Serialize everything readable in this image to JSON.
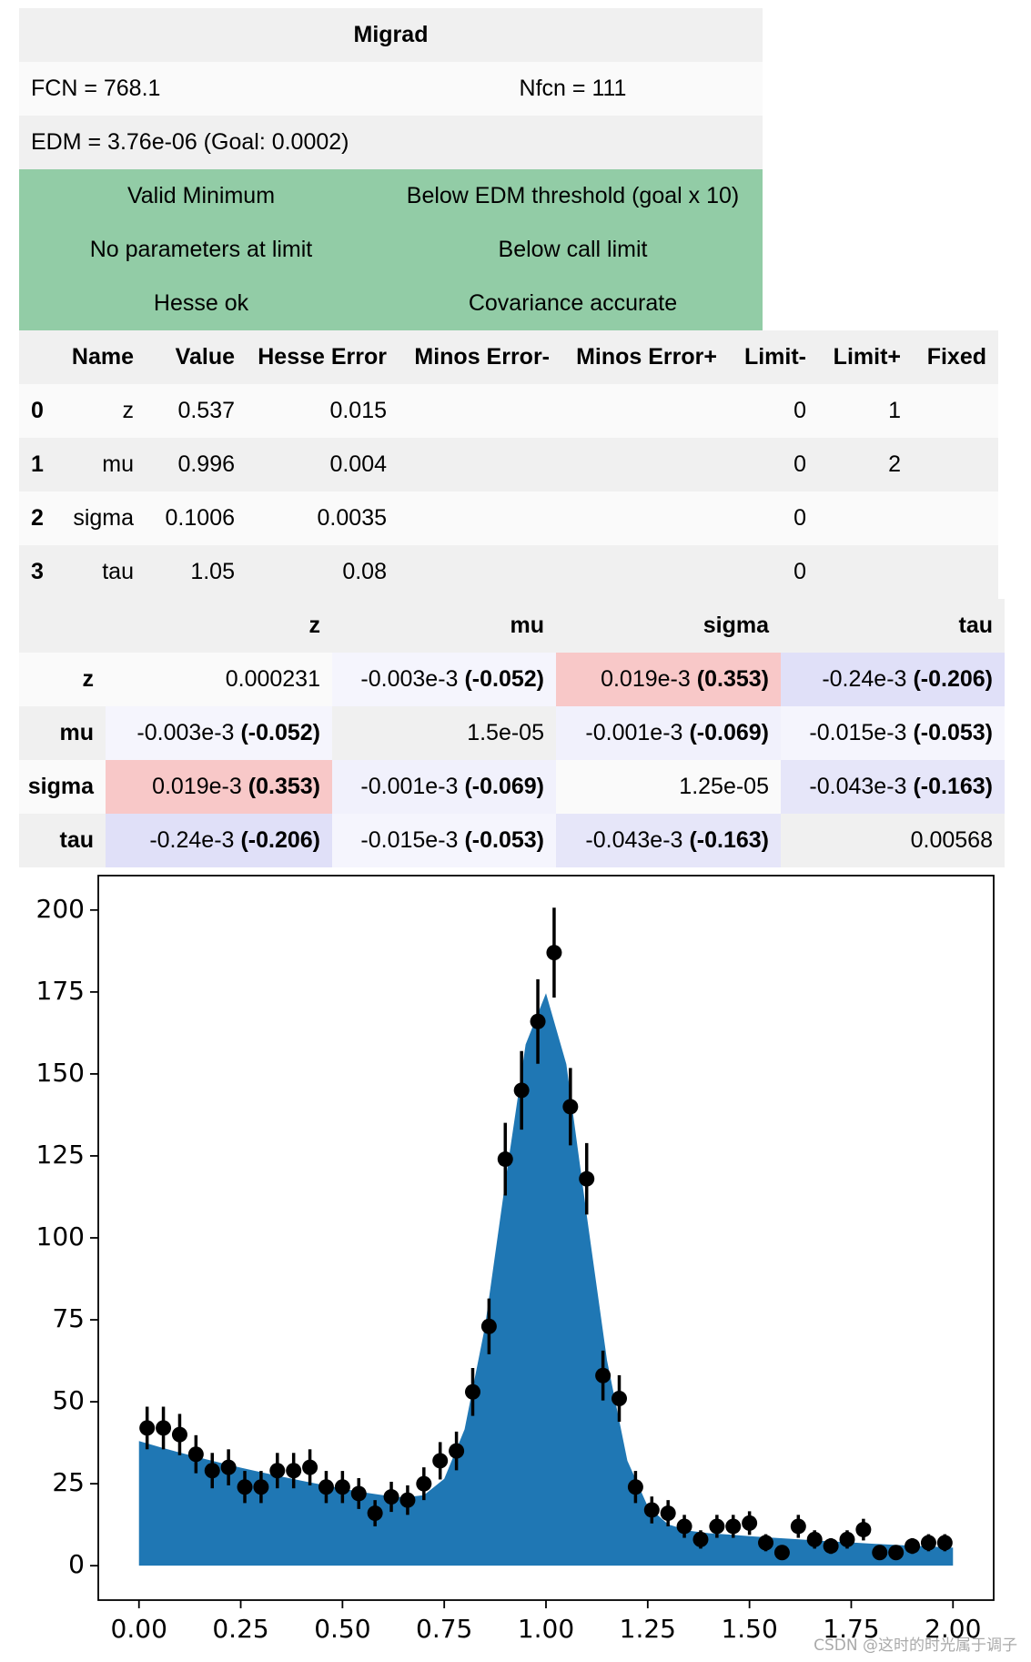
{
  "migrad": {
    "title": "Migrad",
    "fcn": "FCN = 768.1",
    "nfcn": "Nfcn = 111",
    "edm": "EDM = 3.76e-06 (Goal: 0.0002)",
    "status": [
      [
        "Valid Minimum",
        "Below EDM threshold (goal x 10)"
      ],
      [
        "No parameters at limit",
        "Below call limit"
      ],
      [
        "Hesse ok",
        "Covariance accurate"
      ]
    ],
    "status_color": "#92cca6"
  },
  "params": {
    "header": [
      "Name",
      "Value",
      "Hesse Error",
      "Minos Error-",
      "Minos Error+",
      "Limit-",
      "Limit+",
      "Fixed"
    ],
    "rows": [
      [
        "0",
        "z",
        "0.537",
        "0.015",
        null,
        null,
        "0",
        "1",
        null
      ],
      [
        "1",
        "mu",
        "0.996",
        "0.004",
        null,
        null,
        "0",
        "2",
        null
      ],
      [
        "2",
        "sigma",
        "0.1006",
        "0.0035",
        null,
        null,
        "0",
        null,
        null
      ],
      [
        "3",
        "tau",
        "1.05",
        "0.08",
        null,
        null,
        "0",
        null,
        null
      ]
    ]
  },
  "covariance": {
    "columns": [
      "z",
      "mu",
      "sigma",
      "tau"
    ],
    "rows": [
      {
        "name": "z",
        "cells": [
          {
            "text": "0.000231"
          },
          {
            "text": "-0.003e-3",
            "corr": "(-0.052)",
            "color": "#f5f5fd"
          },
          {
            "text": "0.019e-3",
            "corr": "(0.353)",
            "color": "#f8c8c8"
          },
          {
            "text": "-0.24e-3",
            "corr": "(-0.206)",
            "color": "#e0e0f8"
          }
        ]
      },
      {
        "name": "mu",
        "cells": [
          {
            "text": "-0.003e-3",
            "corr": "(-0.052)",
            "color": "#f5f5fd"
          },
          {
            "text": "1.5e-05"
          },
          {
            "text": "-0.001e-3",
            "corr": "(-0.069)",
            "color": "#f1f1fc"
          },
          {
            "text": "-0.015e-3",
            "corr": "(-0.053)",
            "color": "#f5f5fd"
          }
        ]
      },
      {
        "name": "sigma",
        "cells": [
          {
            "text": "0.019e-3",
            "corr": "(0.353)",
            "color": "#f8c8c8"
          },
          {
            "text": "-0.001e-3",
            "corr": "(-0.069)",
            "color": "#f1f1fc"
          },
          {
            "text": "1.25e-05"
          },
          {
            "text": "-0.043e-3",
            "corr": "(-0.163)",
            "color": "#e6e6f9"
          }
        ]
      },
      {
        "name": "tau",
        "cells": [
          {
            "text": "-0.24e-3",
            "corr": "(-0.206)",
            "color": "#e0e0f8"
          },
          {
            "text": "-0.015e-3",
            "corr": "(-0.053)",
            "color": "#f5f5fd"
          },
          {
            "text": "-0.043e-3",
            "corr": "(-0.163)",
            "color": "#e6e6f9"
          },
          {
            "text": "0.00568"
          }
        ]
      }
    ]
  },
  "chart_data": {
    "type": "errorbar",
    "x": [
      0.02,
      0.06,
      0.1,
      0.14,
      0.18,
      0.22,
      0.26,
      0.3,
      0.34,
      0.38,
      0.42,
      0.46,
      0.5,
      0.54,
      0.58,
      0.62,
      0.66,
      0.7,
      0.74,
      0.78,
      0.82,
      0.86,
      0.9,
      0.94,
      0.98,
      1.02,
      1.06,
      1.1,
      1.14,
      1.18,
      1.22,
      1.26,
      1.3,
      1.34,
      1.38,
      1.42,
      1.46,
      1.5,
      1.54,
      1.58,
      1.62,
      1.66,
      1.7,
      1.74,
      1.78,
      1.82,
      1.86,
      1.9,
      1.94,
      1.98
    ],
    "series": [
      {
        "color": "#000000",
        "values": [
          42,
          42,
          40,
          34,
          29,
          30,
          24,
          24,
          29,
          29,
          30,
          24,
          24,
          22,
          16,
          21,
          20,
          25,
          32,
          35,
          53,
          73,
          124,
          145,
          166,
          187,
          140,
          118,
          58,
          51,
          24,
          17,
          16,
          12,
          8,
          12,
          12,
          13,
          7,
          4,
          12,
          8,
          6,
          8,
          11,
          4,
          4,
          6,
          7,
          7
        ],
        "errors": [
          6.5,
          6.5,
          6.3,
          5.8,
          5.4,
          5.5,
          4.9,
          4.9,
          5.4,
          5.4,
          5.5,
          4.9,
          4.9,
          4.7,
          4.0,
          4.6,
          4.5,
          5.0,
          5.7,
          5.9,
          7.3,
          8.5,
          11.1,
          12.0,
          12.9,
          13.7,
          11.8,
          10.9,
          7.6,
          7.1,
          4.9,
          4.1,
          4.0,
          3.5,
          2.8,
          3.5,
          3.5,
          3.6,
          2.6,
          2.0,
          3.5,
          2.8,
          2.4,
          2.8,
          3.3,
          2.0,
          2.0,
          2.4,
          2.6,
          2.6
        ]
      }
    ],
    "model": {
      "color": "#1f77b4",
      "x": [
        0,
        0.05,
        0.1,
        0.15,
        0.2,
        0.25,
        0.3,
        0.35,
        0.4,
        0.45,
        0.5,
        0.55,
        0.6,
        0.65,
        0.7,
        0.75,
        0.8,
        0.85,
        0.9,
        0.95,
        1.0,
        1.05,
        1.1,
        1.15,
        1.2,
        1.25,
        1.3,
        1.35,
        1.4,
        1.45,
        1.5,
        1.55,
        1.6,
        1.65,
        1.7,
        1.75,
        1.8,
        1.85,
        1.9,
        1.95,
        2.0
      ],
      "values": [
        38,
        36.2,
        34.5,
        32.9,
        31.4,
        29.9,
        28.5,
        27.2,
        25.9,
        24.7,
        23.5,
        22.4,
        21.5,
        20.8,
        21.5,
        26.5,
        41.6,
        72.8,
        117,
        159,
        174.6,
        153,
        107,
        62.6,
        32,
        18.1,
        12.6,
        10.7,
        9.9,
        9.5,
        9.0,
        8.6,
        8.2,
        7.8,
        7.4,
        7.1,
        6.7,
        6.4,
        6.1,
        5.8,
        5.5
      ]
    },
    "xlim": [
      -0.1,
      2.1
    ],
    "ylim": [
      -10.5,
      210.5
    ],
    "xticks": [
      {
        "value": 0,
        "label": "0.00"
      },
      {
        "value": 0.25,
        "label": "0.25"
      },
      {
        "value": 0.5,
        "label": "0.50"
      },
      {
        "value": 0.75,
        "label": "0.75"
      },
      {
        "value": 1,
        "label": "1.00"
      },
      {
        "value": 1.25,
        "label": "1.25"
      },
      {
        "value": 1.5,
        "label": "1.50"
      },
      {
        "value": 1.75,
        "label": "1.75"
      },
      {
        "value": 2,
        "label": "2.00"
      }
    ],
    "yticks": [
      0,
      25,
      50,
      75,
      100,
      125,
      150,
      175,
      200
    ],
    "grid": false
  },
  "watermark": "CSDN @这时的时光属于调子"
}
